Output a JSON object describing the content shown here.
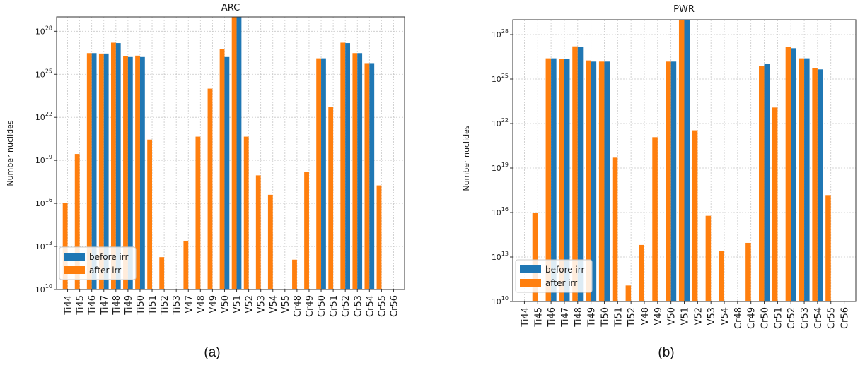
{
  "chart_data": [
    {
      "type": "bar",
      "title": "ARC",
      "caption": "(a)",
      "ylabel": "Number nuclides",
      "yscale": "log",
      "ylim": [
        10000000000.0,
        1e+29
      ],
      "yticks": [
        {
          "base": "10",
          "exp": "10"
        },
        {
          "base": "10",
          "exp": "13"
        },
        {
          "base": "10",
          "exp": "16"
        },
        {
          "base": "10",
          "exp": "19"
        },
        {
          "base": "10",
          "exp": "22"
        },
        {
          "base": "10",
          "exp": "25"
        },
        {
          "base": "10",
          "exp": "28"
        }
      ],
      "grid": true,
      "legend": "bottom-left",
      "categories": [
        "Ti44",
        "Ti45",
        "Ti46",
        "Ti47",
        "Ti48",
        "Ti49",
        "Ti50",
        "Ti51",
        "Ti52",
        "Ti53",
        "V47",
        "V48",
        "V49",
        "V50",
        "V51",
        "V52",
        "V53",
        "V54",
        "V55",
        "Cr48",
        "Cr49",
        "Cr50",
        "Cr51",
        "Cr52",
        "Cr53",
        "Cr54",
        "Cr55",
        "Cr56"
      ],
      "series": [
        {
          "name": "before irr",
          "color": "#1f77b4",
          "values": [
            null,
            null,
            3e+26,
            2.8e+26,
            1.5e+27,
            1.6e+26,
            1.6e+26,
            null,
            null,
            null,
            null,
            null,
            null,
            1.6e+26,
            1e+29,
            null,
            null,
            null,
            null,
            null,
            null,
            1.3e+26,
            null,
            1.5e+27,
            3e+26,
            6e+25,
            null,
            null
          ]
        },
        {
          "name": "after irr",
          "color": "#ff7f0e",
          "values": [
            1.1e+16,
            2.8e+19,
            3e+26,
            2.8e+26,
            1.6e+27,
            1.8e+26,
            2e+26,
            2.8e+20,
            1800000000000.0,
            null,
            25000000000000.0,
            4.5e+20,
            1e+24,
            6e+26,
            1e+29,
            4.5e+20,
            9e+17,
            4e+16,
            null,
            1200000000000.0,
            1.5e+18,
            1.3e+26,
            5e+22,
            1.6e+27,
            3e+26,
            6e+25,
            1.8e+17,
            null
          ]
        }
      ]
    },
    {
      "type": "bar",
      "title": "PWR",
      "caption": "(b)",
      "ylabel": "Number nuclides",
      "yscale": "log",
      "ylim": [
        10000000000.0,
        1e+29
      ],
      "yticks": [
        {
          "base": "10",
          "exp": "10"
        },
        {
          "base": "10",
          "exp": "13"
        },
        {
          "base": "10",
          "exp": "16"
        },
        {
          "base": "10",
          "exp": "19"
        },
        {
          "base": "10",
          "exp": "22"
        },
        {
          "base": "10",
          "exp": "25"
        },
        {
          "base": "10",
          "exp": "28"
        }
      ],
      "grid": true,
      "legend": "bottom-left",
      "categories": [
        "Ti44",
        "Ti45",
        "Ti46",
        "Ti47",
        "Ti48",
        "Ti49",
        "Ti50",
        "Ti51",
        "Ti52",
        "V48",
        "V49",
        "V50",
        "V51",
        "V52",
        "V53",
        "V54",
        "Cr48",
        "Cr49",
        "Cr50",
        "Cr51",
        "Cr52",
        "Cr53",
        "Cr54",
        "Cr55",
        "Cr56"
      ],
      "series": [
        {
          "name": "before irr",
          "color": "#1f77b4",
          "values": [
            null,
            null,
            2.5e+26,
            2.2e+26,
            1.5e+27,
            1.5e+26,
            1.5e+26,
            null,
            null,
            null,
            null,
            1.5e+26,
            1e+29,
            null,
            null,
            null,
            null,
            null,
            1e+26,
            null,
            1.2e+27,
            2.5e+26,
            4.5e+25,
            null,
            null
          ]
        },
        {
          "name": "after irr",
          "color": "#ff7f0e",
          "values": [
            null,
            1e+16,
            2.5e+26,
            2.2e+26,
            1.6e+27,
            1.8e+26,
            1.5e+26,
            5e+19,
            120000000000.0,
            65000000000000.0,
            1.2e+21,
            1.5e+26,
            1e+29,
            3.5e+21,
            6000000000000000.0,
            25000000000000.0,
            null,
            90000000000000.0,
            8e+25,
            1.2e+23,
            1.5e+27,
            2.5e+26,
            5.5e+25,
            1.5e+17,
            11000000000.0
          ]
        }
      ]
    }
  ]
}
